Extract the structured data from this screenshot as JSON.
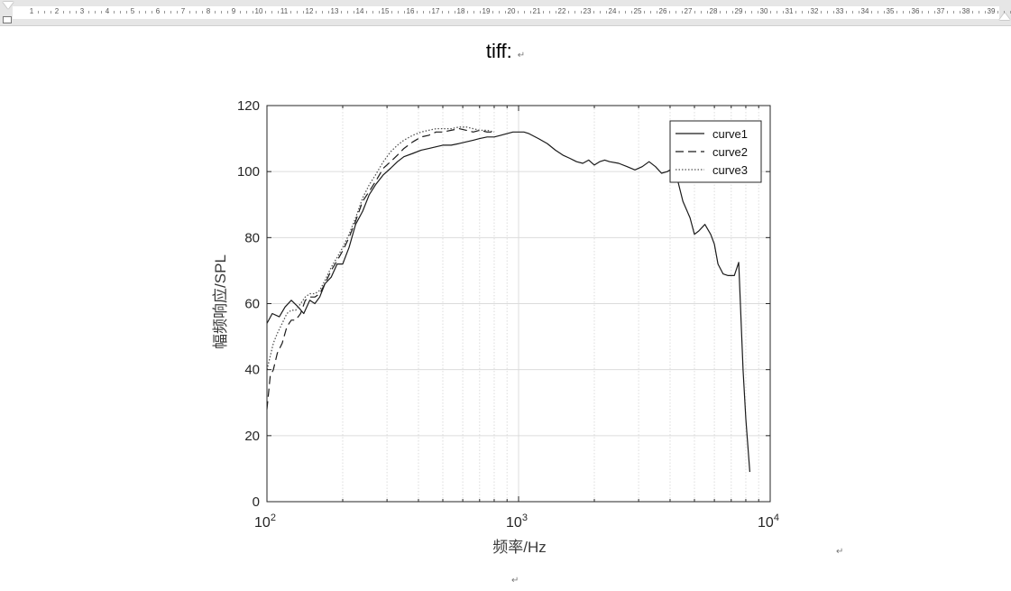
{
  "ruler": {
    "numbers": [
      "1",
      "2",
      "3",
      "4",
      "5",
      "6",
      "7",
      "8",
      "9",
      "10",
      "11",
      "12",
      "13",
      "14",
      "15",
      "16",
      "17",
      "18",
      "19",
      "20",
      "21",
      "22",
      "23",
      "24",
      "25",
      "26",
      "27",
      "28",
      "29",
      "30",
      "31",
      "32",
      "33",
      "34",
      "35",
      "36",
      "37",
      "38",
      "39"
    ]
  },
  "document": {
    "title": "tiff:",
    "paragraph_mark": "↵"
  },
  "chart_data": {
    "type": "line",
    "xscale": "log",
    "xlim": [
      100,
      10000
    ],
    "ylim": [
      0,
      120
    ],
    "xlabel": "频率/Hz",
    "ylabel": "幅频响应/SPL",
    "xticks": [
      {
        "value": 100,
        "base": "10",
        "exp": "2"
      },
      {
        "value": 1000,
        "base": "10",
        "exp": "3"
      },
      {
        "value": 10000,
        "base": "10",
        "exp": "4"
      }
    ],
    "yticks": [
      "0",
      "20",
      "40",
      "60",
      "80",
      "100",
      "120"
    ],
    "grid": true,
    "legend_position": "top-right",
    "colors": {
      "axis": "#262626",
      "grid": "#dcdcdc",
      "line": "#1a1a1a",
      "curve3": "#555555"
    },
    "series": [
      {
        "name": "curve1",
        "style": "solid",
        "x": [
          100,
          105,
          112,
          118,
          125,
          133,
          140,
          148,
          155,
          162,
          170,
          180,
          190,
          200,
          212,
          225,
          240,
          255,
          270,
          290,
          310,
          330,
          350,
          380,
          410,
          440,
          470,
          500,
          540,
          580,
          620,
          660,
          700,
          750,
          800,
          850,
          900,
          950,
          1000,
          1050,
          1100,
          1200,
          1300,
          1400,
          1500,
          1600,
          1700,
          1800,
          1900,
          2000,
          2100,
          2200,
          2300,
          2500,
          2700,
          2900,
          3100,
          3300,
          3500,
          3700,
          3900,
          4100,
          4300,
          4500,
          4800,
          5000,
          5200,
          5500,
          5800,
          6000,
          6200,
          6500,
          6800,
          7200,
          7500,
          7800,
          8000,
          8300
        ],
        "y": [
          54,
          57,
          56,
          59,
          61,
          59,
          57,
          61,
          60,
          62,
          66,
          68,
          72,
          72,
          77,
          84,
          88,
          93,
          96,
          99,
          101,
          103,
          104.5,
          105.5,
          106.5,
          107,
          107.5,
          108,
          108,
          108.5,
          109,
          109.5,
          110,
          110.5,
          110.5,
          111,
          111.5,
          112,
          112,
          112,
          111.5,
          110,
          108.5,
          106.5,
          105,
          104,
          103,
          102.5,
          103.5,
          102,
          103,
          103.5,
          103,
          102.5,
          101.5,
          100.5,
          101.5,
          103,
          101.5,
          99.5,
          100,
          101,
          97,
          91,
          86,
          81,
          82,
          84,
          81,
          78,
          72,
          69,
          68.5,
          68.5,
          72.5,
          40,
          25,
          9
        ]
      },
      {
        "name": "curve2",
        "style": "dashed",
        "x": [
          100,
          103,
          106,
          110,
          115,
          120,
          125,
          130,
          136,
          142,
          148,
          155,
          162,
          170,
          180,
          190,
          200,
          212,
          225,
          240,
          255,
          270,
          290,
          310,
          330,
          350,
          380,
          410,
          440,
          470,
          500,
          540,
          580,
          620,
          660,
          700,
          750,
          800
        ],
        "y": [
          28,
          38,
          40,
          45,
          48,
          53,
          55,
          55,
          57,
          61,
          62,
          62,
          63,
          66,
          70,
          73,
          76,
          80,
          85,
          91,
          94,
          97,
          101,
          103,
          105,
          107,
          109,
          110.5,
          111,
          112,
          112,
          112.5,
          113,
          112.5,
          112,
          112.5,
          112,
          112
        ]
      },
      {
        "name": "curve3",
        "style": "dotted",
        "x": [
          100,
          103,
          106,
          110,
          115,
          120,
          125,
          130,
          136,
          142,
          148,
          155,
          162,
          170,
          180,
          190,
          200,
          212,
          225,
          240,
          255,
          270,
          290,
          310,
          330,
          350,
          380,
          410,
          440,
          470,
          500,
          540,
          580,
          620,
          660,
          700,
          750,
          800
        ],
        "y": [
          40,
          44,
          48,
          51,
          54,
          57,
          58,
          58,
          60,
          62,
          63,
          63,
          64,
          67,
          71,
          74,
          77,
          81,
          86,
          92,
          96,
          99,
          103,
          106,
          108,
          109.5,
          111,
          112,
          112.5,
          113,
          113,
          113,
          113.5,
          113.5,
          113,
          112.5,
          112.5,
          112
        ]
      }
    ]
  }
}
